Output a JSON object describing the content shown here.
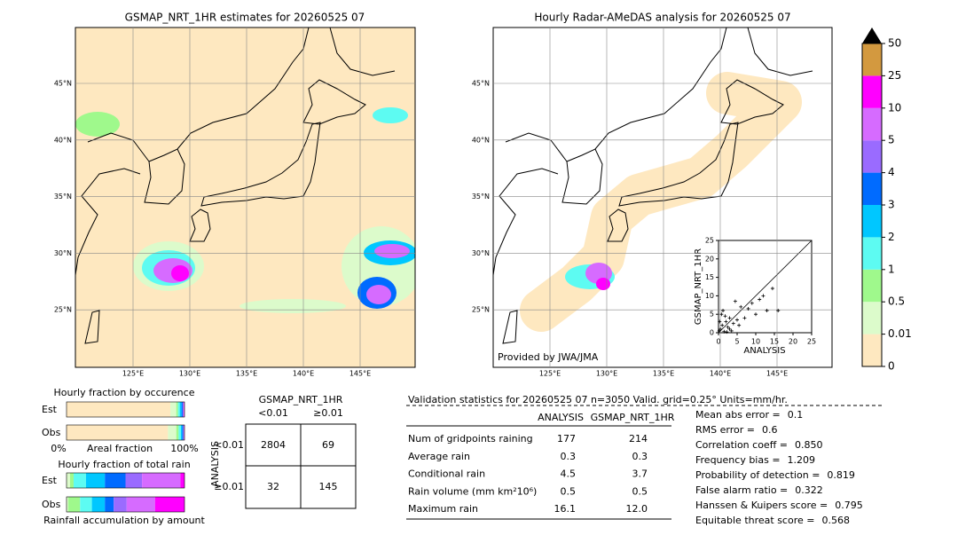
{
  "map_left": {
    "title": "GSMAP_NRT_1HR estimates for 20260525 07",
    "lat_labels": [
      "45°N",
      "40°N",
      "35°N",
      "30°N",
      "25°N"
    ],
    "lon_labels": [
      "125°E",
      "130°E",
      "135°E",
      "140°E",
      "145°E"
    ]
  },
  "map_right": {
    "title": "Hourly Radar-AMeDAS analysis for 20260525 07",
    "lat_labels": [
      "45°N",
      "40°N",
      "35°N",
      "30°N",
      "25°N"
    ],
    "lon_labels": [
      "125°E",
      "130°E",
      "135°E",
      "140°E",
      "145°E"
    ],
    "credit": "Provided by JWA/JMA"
  },
  "chart_data": {
    "type": "scatter",
    "x_label": "ANALYSIS",
    "y_label": "GSMAP_NRT_1HR",
    "xlim": [
      0,
      25
    ],
    "ylim": [
      0,
      25
    ],
    "xticks": [
      0,
      5,
      10,
      15,
      20,
      25
    ],
    "yticks": [
      0,
      5,
      10,
      15,
      20,
      25
    ],
    "x": [
      0.2,
      0.5,
      1.0,
      1.5,
      2.0,
      2.5,
      3.0,
      0.8,
      1.2,
      3.5,
      4.0,
      5.0,
      6.0,
      7.0,
      8.0,
      9.0,
      10.0,
      11.0,
      12.0,
      13.0,
      14.5,
      16.0,
      3.0,
      5.5,
      2.2,
      0.3,
      1.8,
      4.5
    ],
    "values": [
      0.5,
      1.0,
      2.0,
      0.3,
      3.0,
      1.5,
      4.0,
      5.0,
      6.0,
      0.5,
      2.5,
      3.5,
      7.0,
      4.0,
      6.5,
      8.0,
      5.0,
      9.0,
      10.0,
      6.0,
      12.0,
      6.0,
      1.0,
      2.0,
      0.2,
      3.0,
      4.5,
      8.5
    ],
    "color": "#000000"
  },
  "colorbar": {
    "levels": [
      0,
      0.01,
      0.5,
      1,
      2,
      3,
      4,
      5,
      10,
      25,
      50
    ],
    "colors": [
      "#fee8c0",
      "#dcfbcb",
      "#9ff98c",
      "#5dfbf2",
      "#00c7ff",
      "#006bff",
      "#9a6bff",
      "#d66bff",
      "#ff00ff",
      "#d3993f"
    ]
  },
  "occurrence": {
    "title": "Hourly fraction by occurence",
    "rows": [
      "Est",
      "Obs"
    ],
    "left": "0%",
    "middle": "Areal fraction",
    "right": "100%",
    "segments": [
      [
        88,
        5,
        1.5,
        1.5,
        1.5,
        1,
        0.5,
        0.7,
        0.3,
        0
      ],
      [
        86,
        7,
        2,
        2,
        1,
        1,
        0.3,
        0.5,
        0.2,
        0
      ]
    ]
  },
  "total_rain": {
    "title": "Hourly fraction of total rain",
    "rows": [
      "Est",
      "Obs"
    ],
    "footer": "Rainfall accumulation by amount",
    "segments": [
      [
        0,
        3,
        3,
        10.5,
        16,
        17.5,
        14,
        32.5,
        3.5,
        0
      ],
      [
        0,
        1.5,
        10,
        10,
        11,
        7.5,
        11,
        24,
        25,
        0
      ]
    ]
  },
  "contingency": {
    "title": "GSMAP_NRT_1HR",
    "col_labels": [
      "<0.01",
      "≥0.01"
    ],
    "row_title": "ANALYSIS",
    "row_labels": [
      "<0.01",
      "≥0.01"
    ],
    "cells": [
      [
        "2804",
        "69"
      ],
      [
        "32",
        "145"
      ]
    ]
  },
  "validation": {
    "header": "Validation statistics for 20260525 07  n=3050 Valid. grid=0.25° Units=mm/hr.",
    "columns": [
      "ANALYSIS",
      "GSMAP_NRT_1HR"
    ],
    "rows": [
      {
        "label": "Num of gridpoints raining",
        "analysis": "177",
        "estimate": "214"
      },
      {
        "label": "Average rain",
        "analysis": "0.3",
        "estimate": "0.3"
      },
      {
        "label": "Conditional rain",
        "analysis": "4.5",
        "estimate": "3.7"
      },
      {
        "label": "Rain volume (mm km²10⁶)",
        "analysis": "0.5",
        "estimate": "0.5"
      },
      {
        "label": "Maximum rain",
        "analysis": "16.1",
        "estimate": "12.0"
      }
    ],
    "scores": [
      {
        "label": "Mean abs error =",
        "value": "0.1"
      },
      {
        "label": "RMS error =",
        "value": "0.6"
      },
      {
        "label": "Correlation coeff =",
        "value": "0.850"
      },
      {
        "label": "Frequency bias =",
        "value": "1.209"
      },
      {
        "label": "Probability of detection =",
        "value": "0.819"
      },
      {
        "label": "False alarm ratio =",
        "value": "0.322"
      },
      {
        "label": "Hanssen & Kuipers score =",
        "value": "0.795"
      },
      {
        "label": "Equitable threat score =",
        "value": "0.568"
      }
    ]
  }
}
